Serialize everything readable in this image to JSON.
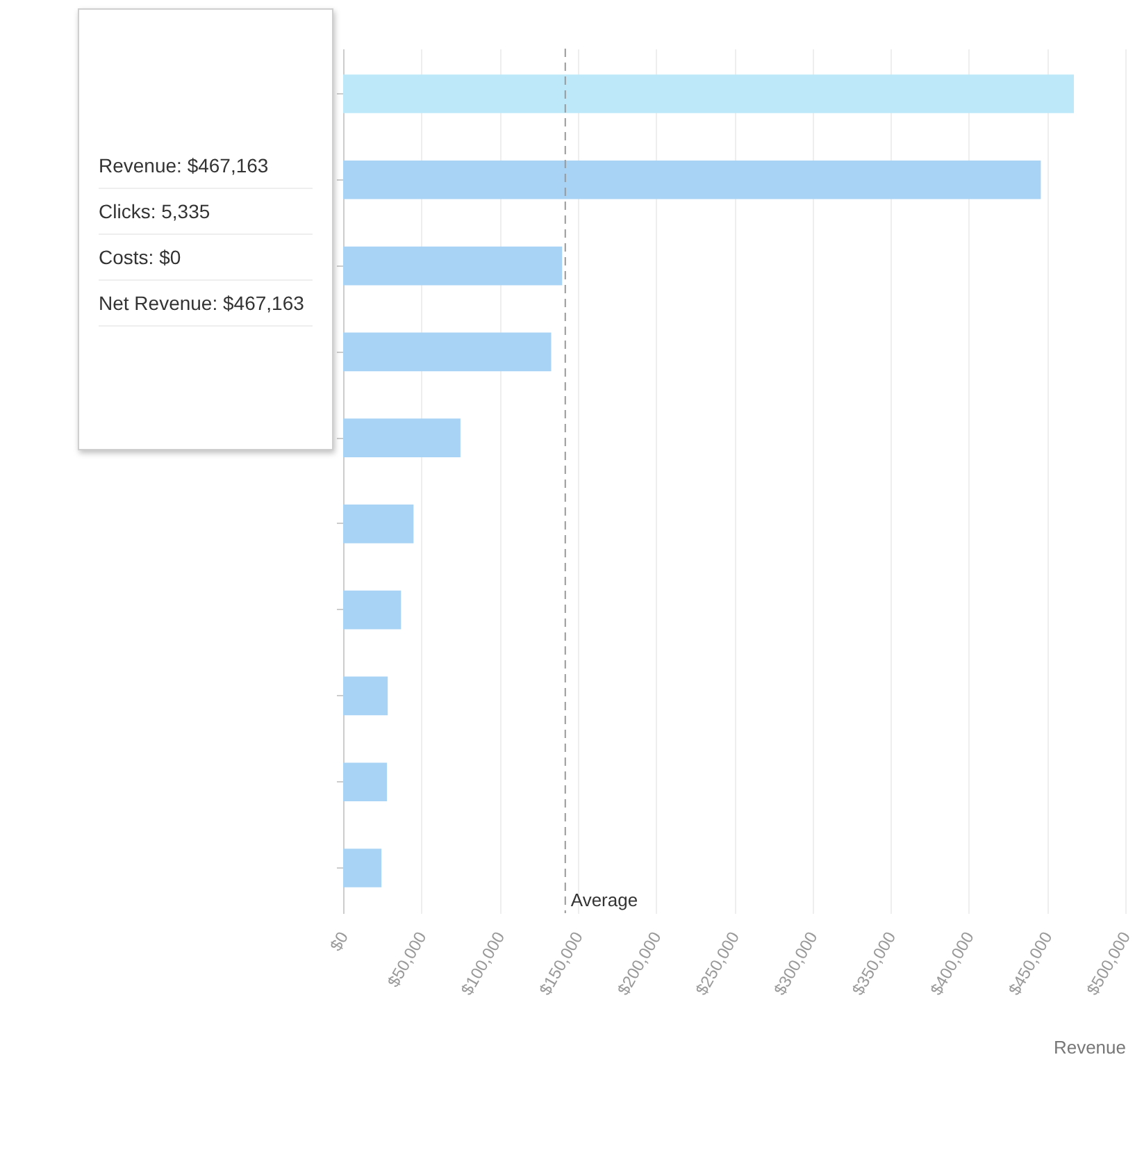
{
  "chart_data": {
    "type": "bar",
    "orientation": "horizontal",
    "categories": [
      null,
      null,
      null,
      null,
      null,
      null,
      null,
      null,
      null,
      null
    ],
    "values": [
      467163,
      446000,
      140000,
      133000,
      75000,
      45000,
      37000,
      28500,
      28000,
      24500
    ],
    "colors": [
      "#bde8fa",
      "#a9d3f5",
      "#a9d3f5",
      "#a9d3f5",
      "#a9d3f5",
      "#a9d3f5",
      "#a9d3f5",
      "#a9d3f5",
      "#a9d3f5",
      "#a9d3f5"
    ],
    "xlabel": "Revenue",
    "xlim": [
      0,
      500000
    ],
    "xticks": [
      {
        "value": 0,
        "label": "$0"
      },
      {
        "value": 50000,
        "label": "$50,000"
      },
      {
        "value": 100000,
        "label": "$100,000"
      },
      {
        "value": 150000,
        "label": "$150,000"
      },
      {
        "value": 200000,
        "label": "$200,000"
      },
      {
        "value": 250000,
        "label": "$250,000"
      },
      {
        "value": 300000,
        "label": "$300,000"
      },
      {
        "value": 350000,
        "label": "$350,000"
      },
      {
        "value": 400000,
        "label": "$400,000"
      },
      {
        "value": 450000,
        "label": "$450,000"
      },
      {
        "value": 500000,
        "label": "$500,000"
      }
    ],
    "grid": "x",
    "ref_lines": [
      {
        "axis": "x",
        "value": 142000,
        "label": "Average",
        "color": "#999999",
        "line_style": "dashed"
      }
    ],
    "annotations": [
      "Revenue: $467,163",
      "Clicks: 5,335",
      "Costs: $0",
      "Net Revenue: $467,163"
    ]
  }
}
